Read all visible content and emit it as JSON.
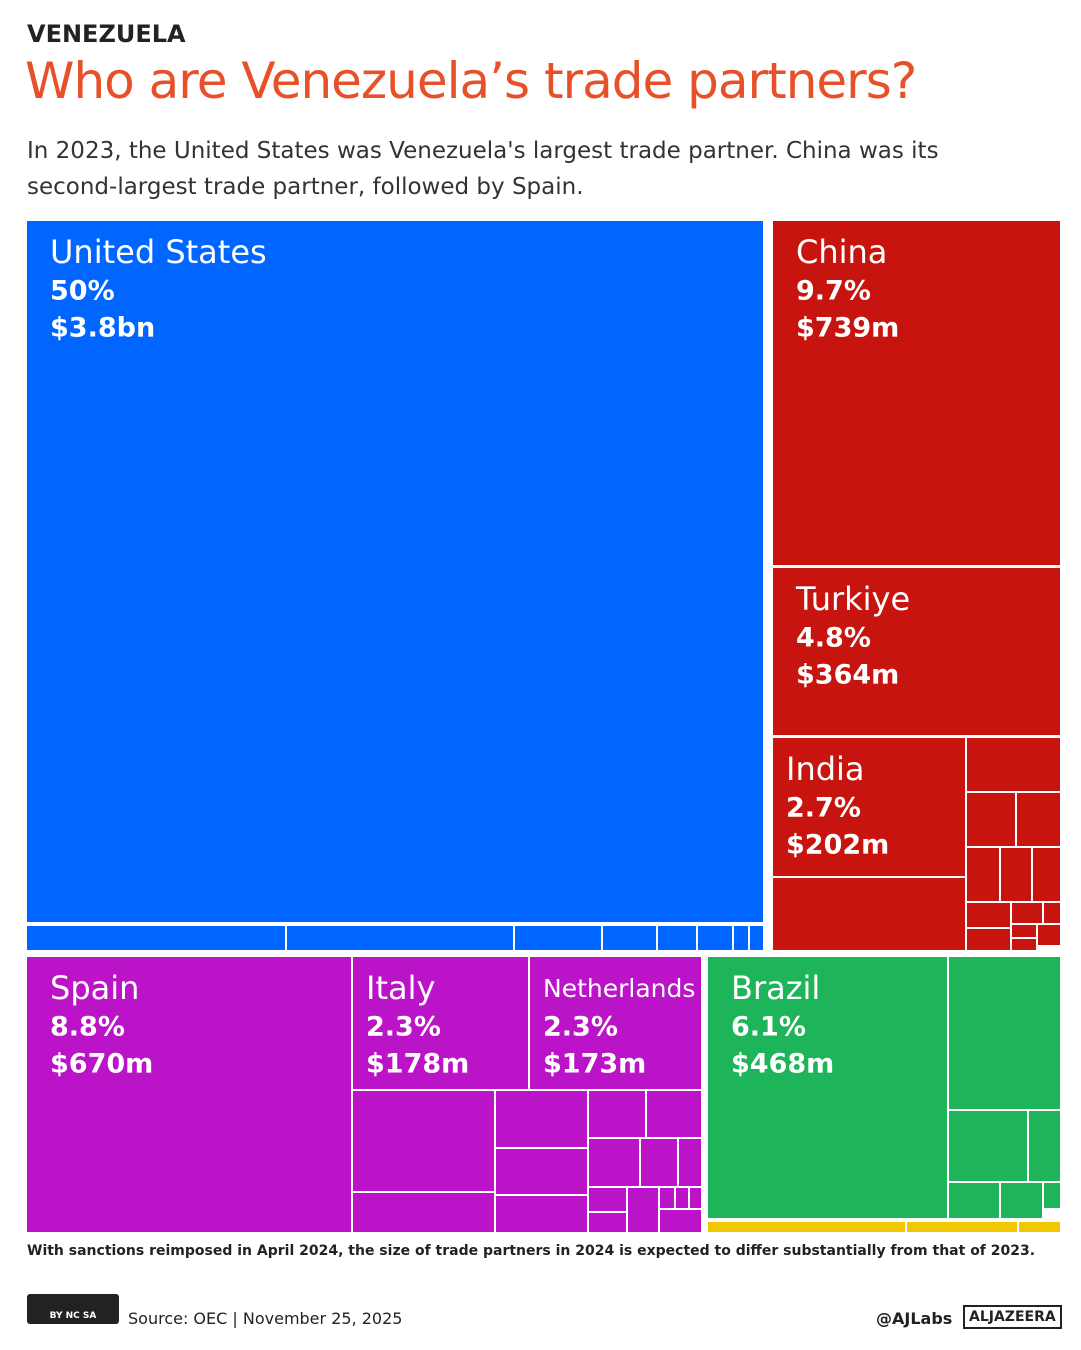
{
  "chart_data": {
    "type": "treemap",
    "kicker": "VENEZUELA",
    "title": "Who are Venezuela’s trade partners?",
    "subtitle": "In 2023, the United States was Venezuela's largest trade partner. China was its second-largest trade partner, followed by Spain.",
    "categories": [
      "United States",
      "China",
      "Turkiye",
      "India",
      "Spain",
      "Italy",
      "Netherlands",
      "Brazil"
    ],
    "values": [
      50,
      9.7,
      4.8,
      2.7,
      8.8,
      2.3,
      2.3,
      6.1
    ],
    "value_labels": [
      "50%",
      "9.7%",
      "4.8%",
      "2.7%",
      "8.8%",
      "2.3%",
      "2.3%",
      "6.1%"
    ],
    "trade_values": [
      3800000000,
      739000000,
      364000000,
      202000000,
      670000000,
      178000000,
      173000000,
      468000000
    ],
    "trade_value_labels": [
      "$3.8bn",
      "$739m",
      "$364m",
      "$202m",
      "$670m",
      "$178m",
      "$173m",
      "$468m"
    ],
    "colors": [
      "#0066ff",
      "#c8140e",
      "#c8140e",
      "#c8140e",
      "#bb14c8",
      "#bb14c8",
      "#bb14c8",
      "#1db45a"
    ],
    "footnote": "With sanctions reimposed in April 2024, the size of trade partners in 2024 is expected to differ substantially from that of 2023.",
    "license": "BY NC SA",
    "source": "Source:  OEC | November 25, 2025",
    "credit": "@AJLabs",
    "logo": "ALJAZEERA"
  }
}
